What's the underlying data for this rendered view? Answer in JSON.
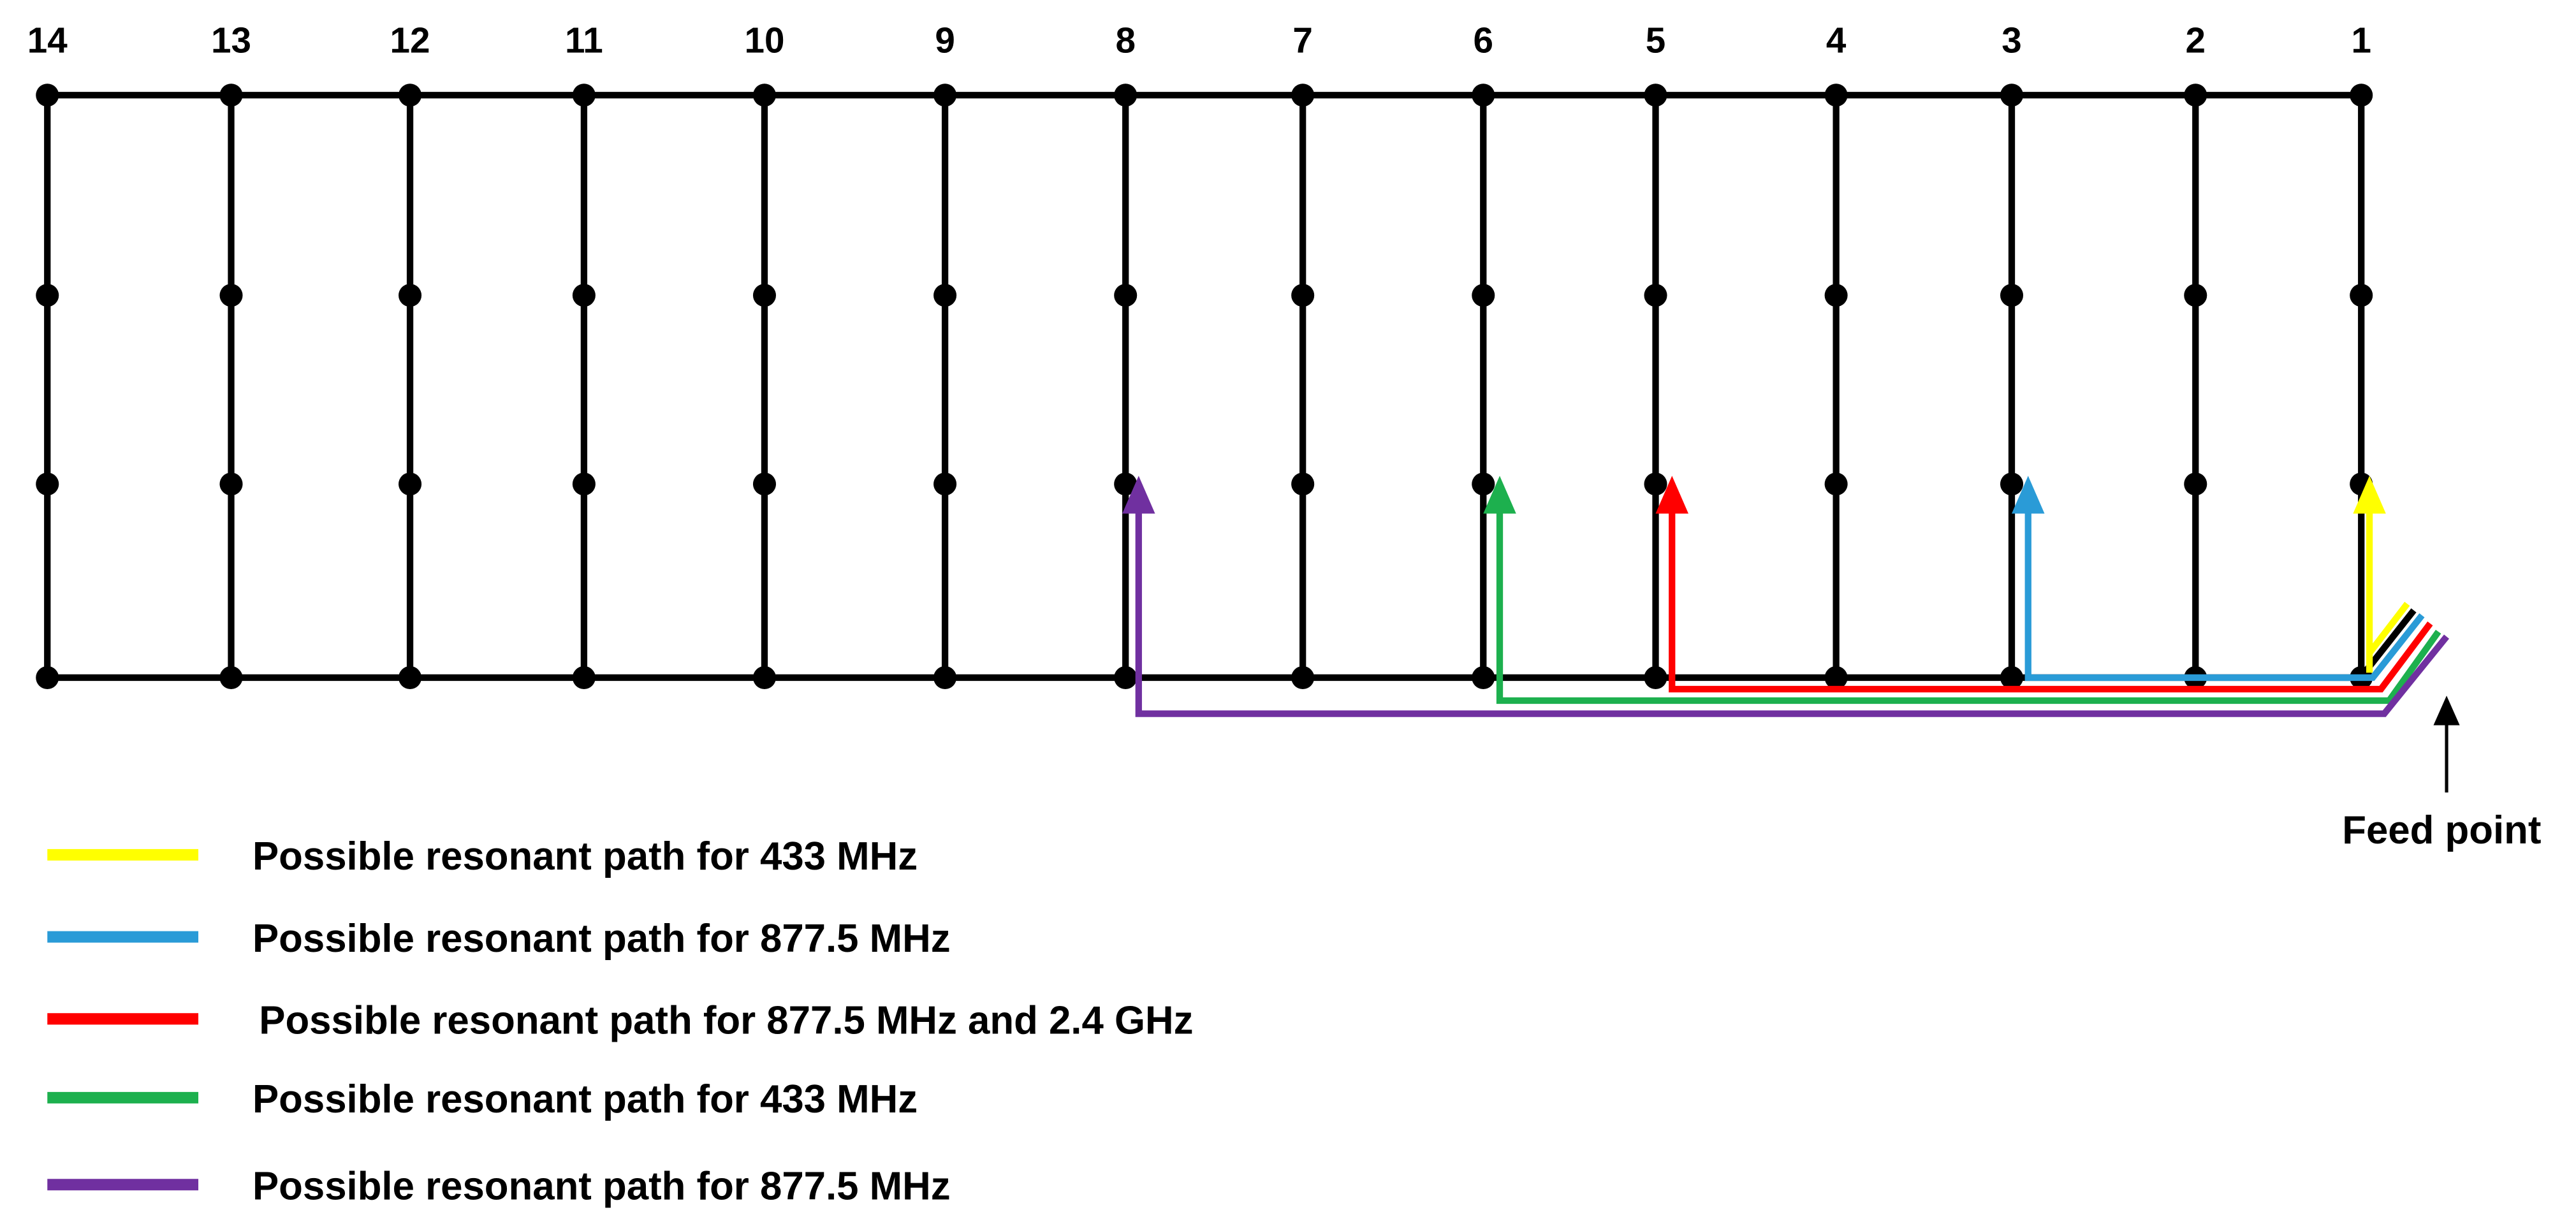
{
  "columns": [
    "14",
    "13",
    "12",
    "11",
    "10",
    "9",
    "8",
    "7",
    "6",
    "5",
    "4",
    "3",
    "2",
    "1"
  ],
  "legend": [
    {
      "color": "#ffff00",
      "label": "Possible resonant path for 433 MHz"
    },
    {
      "color": "#2a9bd7",
      "label": "Possible resonant path for 877.5 MHz"
    },
    {
      "color": "#ff0000",
      "label": "Possible resonant path for 877.5 MHz and 2.4 GHz"
    },
    {
      "color": "#1db04e",
      "label": "Possible resonant path for 433 MHz"
    },
    {
      "color": "#7030a0",
      "label": "Possible resonant path for 877.5 MHz"
    }
  ],
  "feed_point": "Feed point"
}
